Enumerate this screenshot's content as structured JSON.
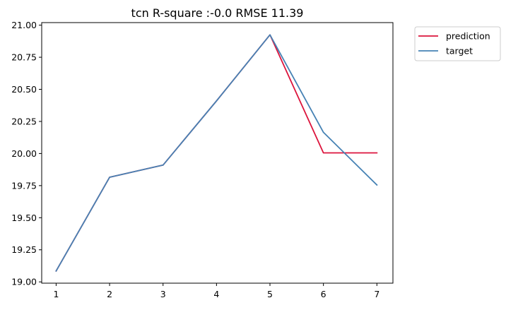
{
  "chart_data": {
    "type": "line",
    "title": "tcn R-square :-0.0 RMSE 11.39",
    "xlabel": "",
    "ylabel": "",
    "x": [
      1,
      2,
      3,
      4,
      5,
      6,
      7
    ],
    "xlim": [
      0.73,
      7.3
    ],
    "ylim": [
      18.99,
      21.02
    ],
    "xticks": [
      "1",
      "2",
      "3",
      "4",
      "5",
      "6",
      "7"
    ],
    "yticks": [
      "19.00",
      "19.25",
      "19.50",
      "19.75",
      "20.00",
      "20.25",
      "20.50",
      "20.75",
      "21.00"
    ],
    "grid": false,
    "legend_position": "outside-top-right",
    "series": [
      {
        "name": "prediction",
        "color": "#dc143c",
        "values": [
          19.085,
          19.815,
          19.91,
          20.41,
          20.925,
          20.005,
          20.005
        ]
      },
      {
        "name": "target",
        "color": "#4682b4",
        "values": [
          19.085,
          19.815,
          19.91,
          20.41,
          20.925,
          20.165,
          19.755
        ]
      }
    ]
  }
}
